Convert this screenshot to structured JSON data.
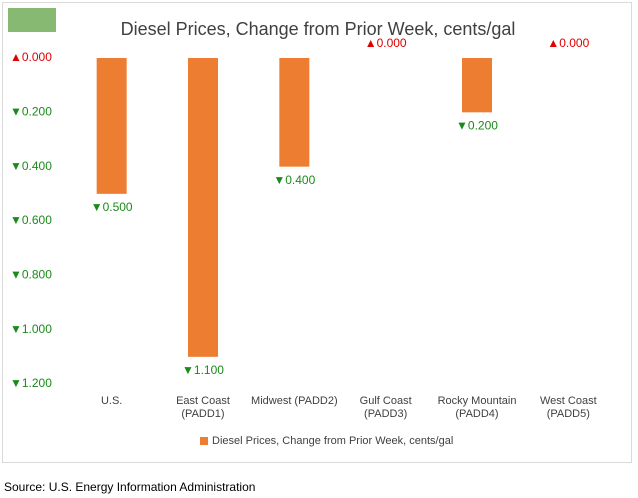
{
  "chart_data": {
    "type": "bar",
    "title": "Diesel Prices, Change from Prior Week, cents/gal",
    "categories": [
      "U.S.",
      "East Coast (PADD1)",
      "Midwest (PADD2)",
      "Gulf Coast (PADD3)",
      "Rocky Mountain (PADD4)",
      "West Coast (PADD5)"
    ],
    "series": [
      {
        "name": "Diesel Prices, Change from Prior Week, cents/gal",
        "color": "#ed7d31",
        "values": [
          -0.5,
          -1.1,
          -0.4,
          0,
          -0.2,
          0
        ],
        "value_labels": [
          "▼0.500",
          "▼1.100",
          "▼0.400",
          "▲0.000",
          "▼0.200",
          "▲0.000"
        ]
      }
    ],
    "ylim": [
      -1.2,
      0
    ],
    "yticks": [
      {
        "value": 0,
        "label": "▲0.000"
      },
      {
        "value": -0.2,
        "label": "▼0.200"
      },
      {
        "value": -0.4,
        "label": "▼0.400"
      },
      {
        "value": -0.6,
        "label": "▼0.600"
      },
      {
        "value": -0.8,
        "label": "▼0.800"
      },
      {
        "value": -1.0,
        "label": "▼1.000"
      },
      {
        "value": -1.2,
        "label": "▼1.200"
      }
    ],
    "up_color": "#e00000",
    "down_color": "#1a8a1a",
    "grid": false,
    "legend": "bottom",
    "source": "Source: U.S. Energy Information Administration"
  }
}
